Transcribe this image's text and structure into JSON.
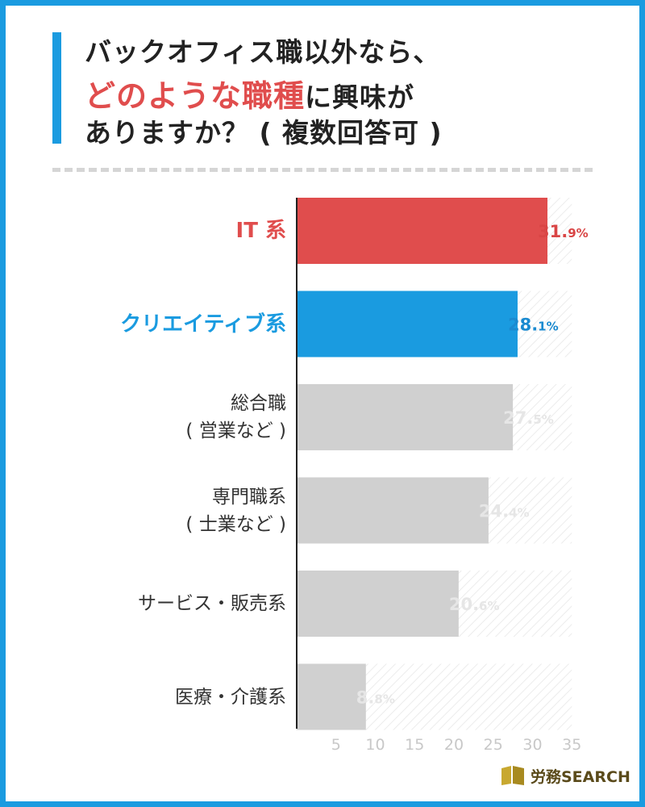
{
  "title": {
    "line1": "バックオフィス職以外なら、",
    "line2_highlight": "どのような職種",
    "line2_rest": "に興味が",
    "line3": "ありますか？ ( 複数回答可 )"
  },
  "logo": {
    "brand": "労務SEARCH"
  },
  "colors": {
    "accent_blue": "#1a9be0",
    "accent_red": "#e04d4d",
    "bar_gray": "#d0d0d0",
    "pct_red": "#d94545",
    "pct_blue": "#1a8ad0",
    "pct_gray": "#e6e6e6"
  },
  "chart_data": {
    "type": "bar",
    "orientation": "horizontal",
    "unit": "%",
    "categories": [
      [
        "IT 系"
      ],
      [
        "クリエイティブ系"
      ],
      [
        "総合職",
        "( 営業など )"
      ],
      [
        "専門職系",
        "( 士業など )"
      ],
      [
        "サービス・販売系"
      ],
      [
        "医療・介護系"
      ]
    ],
    "values": [
      31.9,
      28.1,
      27.5,
      24.4,
      20.6,
      8.8
    ],
    "value_labels": [
      [
        "31.",
        "9%"
      ],
      [
        "28.",
        "1%"
      ],
      [
        "27.",
        "5%"
      ],
      [
        "24.",
        "4%"
      ],
      [
        "20.",
        "6%"
      ],
      [
        "8.",
        "8%"
      ]
    ],
    "highlight": [
      "red",
      "blue",
      "none",
      "none",
      "none",
      "none"
    ],
    "x_ticks": [
      5,
      10,
      15,
      20,
      25,
      30,
      35
    ],
    "xlim": [
      0,
      35
    ]
  }
}
